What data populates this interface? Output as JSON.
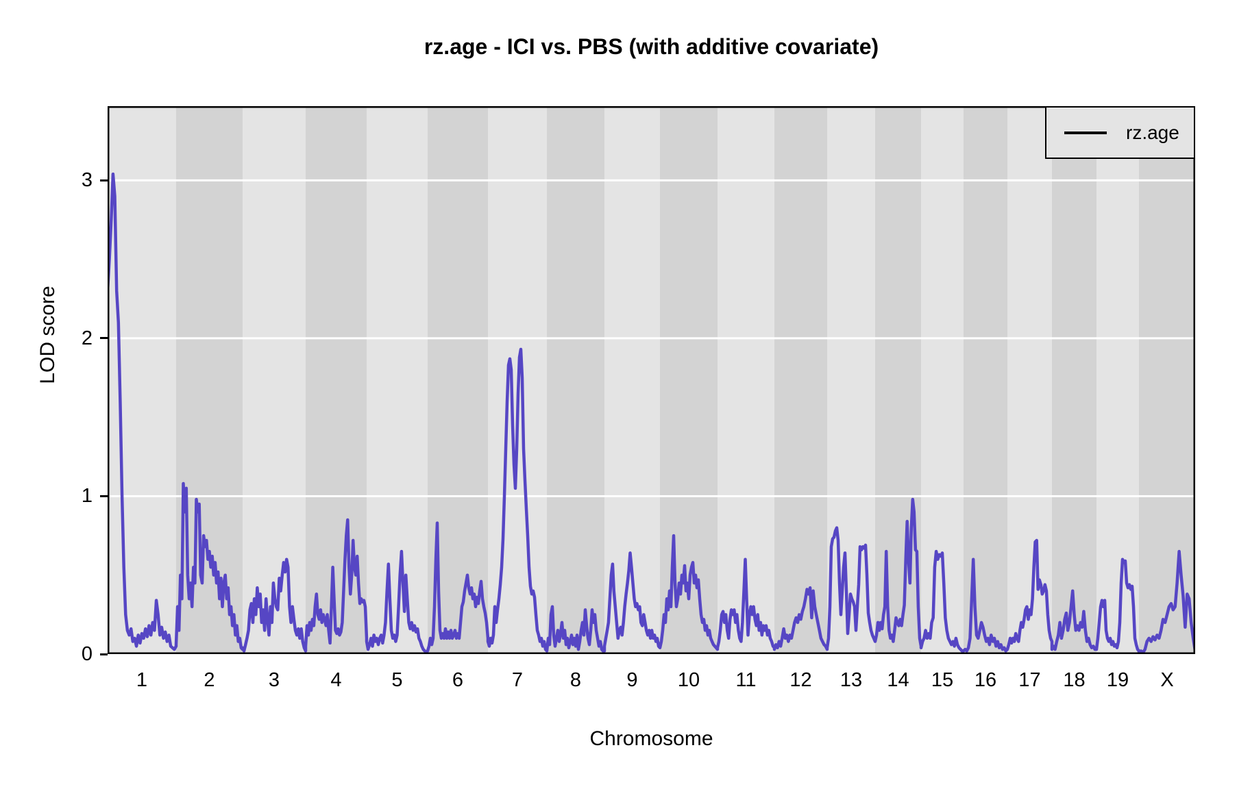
{
  "title": "rz.age - ICI vs. PBS (with additive covariate)",
  "y_axis": {
    "label": "LOD score"
  },
  "x_axis": {
    "label": "Chromosome"
  },
  "legend": {
    "series_label": "rz.age",
    "position": "top-right"
  },
  "colors": {
    "line": "#5646C4",
    "band_light": "#e4e4e4",
    "band_dark": "#d3d3d3",
    "gridline": "#ffffff",
    "border": "#000000",
    "background": "#ffffff",
    "legend_fill": "#e4e4e4"
  },
  "chart_data": {
    "type": "line",
    "title": "rz.age - ICI vs. PBS (with additive covariate)",
    "xlabel": "Chromosome",
    "ylabel": "LOD score",
    "ylim": [
      0,
      3.47
    ],
    "yticks": [
      0,
      1,
      2,
      3
    ],
    "grid": "horizontal-white-on-gray-bands",
    "legend_position": "top-right",
    "series_name": "rz.age",
    "chromosomes": [
      {
        "chr": "1",
        "rel_width": 100,
        "lod": [
          2.3,
          2.5,
          2.75,
          3.04,
          2.9,
          2.3,
          2.1,
          1.6,
          1.0,
          0.55,
          0.25,
          0.15,
          0.12,
          0.16,
          0.08,
          0.1,
          0.05,
          0.12,
          0.07,
          0.13,
          0.1,
          0.16,
          0.11,
          0.18,
          0.12,
          0.2,
          0.15,
          0.34,
          0.25,
          0.12,
          0.17,
          0.1,
          0.14,
          0.08,
          0.12,
          0.05,
          0.04,
          0.03,
          0.05
        ]
      },
      {
        "chr": "2",
        "rel_width": 97,
        "lod": [
          0.06,
          0.3,
          0.15,
          0.5,
          0.35,
          1.08,
          0.9,
          1.05,
          0.5,
          0.35,
          0.45,
          0.3,
          0.55,
          0.45,
          0.98,
          0.9,
          0.95,
          0.5,
          0.45,
          0.75,
          0.68,
          0.72,
          0.6,
          0.65,
          0.55,
          0.62,
          0.5,
          0.58,
          0.45,
          0.52,
          0.35,
          0.48,
          0.3,
          0.45,
          0.5,
          0.35,
          0.42,
          0.25,
          0.3,
          0.18,
          0.25,
          0.12,
          0.18,
          0.08,
          0.1,
          0.04,
          0.03
        ]
      },
      {
        "chr": "3",
        "rel_width": 92,
        "lod": [
          0.04,
          0.02,
          0.06,
          0.1,
          0.15,
          0.28,
          0.32,
          0.2,
          0.35,
          0.25,
          0.42,
          0.3,
          0.38,
          0.2,
          0.28,
          0.15,
          0.35,
          0.22,
          0.12,
          0.3,
          0.2,
          0.45,
          0.35,
          0.3,
          0.28,
          0.48,
          0.4,
          0.5,
          0.58,
          0.52,
          0.6,
          0.55,
          0.3,
          0.2,
          0.3,
          0.22,
          0.15,
          0.12,
          0.16,
          0.1,
          0.16,
          0.08,
          0.04,
          0.02
        ]
      },
      {
        "chr": "4",
        "rel_width": 89,
        "lod": [
          0.05,
          0.18,
          0.12,
          0.2,
          0.15,
          0.22,
          0.18,
          0.3,
          0.38,
          0.25,
          0.22,
          0.28,
          0.2,
          0.25,
          0.22,
          0.18,
          0.25,
          0.15,
          0.07,
          0.3,
          0.55,
          0.35,
          0.15,
          0.13,
          0.16,
          0.12,
          0.14,
          0.2,
          0.4,
          0.6,
          0.75,
          0.85,
          0.55,
          0.38,
          0.5,
          0.72,
          0.55,
          0.5,
          0.62,
          0.45,
          0.32,
          0.35,
          0.33,
          0.34,
          0.3,
          0.1
        ]
      },
      {
        "chr": "5",
        "rel_width": 89,
        "lod": [
          0.08,
          0.03,
          0.06,
          0.1,
          0.05,
          0.12,
          0.08,
          0.1,
          0.06,
          0.1,
          0.12,
          0.07,
          0.12,
          0.2,
          0.4,
          0.57,
          0.35,
          0.15,
          0.1,
          0.12,
          0.08,
          0.12,
          0.3,
          0.5,
          0.65,
          0.45,
          0.27,
          0.5,
          0.35,
          0.2,
          0.16,
          0.2,
          0.15,
          0.18,
          0.14,
          0.16,
          0.1,
          0.08,
          0.05,
          0.03,
          0.02,
          0.01,
          0.02
        ]
      },
      {
        "chr": "6",
        "rel_width": 88,
        "lod": [
          0.02,
          0.05,
          0.1,
          0.06,
          0.1,
          0.3,
          0.6,
          0.83,
          0.4,
          0.15,
          0.1,
          0.13,
          0.1,
          0.16,
          0.1,
          0.14,
          0.1,
          0.15,
          0.1,
          0.12,
          0.15,
          0.1,
          0.13,
          0.1,
          0.2,
          0.3,
          0.33,
          0.4,
          0.45,
          0.5,
          0.42,
          0.38,
          0.42,
          0.35,
          0.38,
          0.3,
          0.36,
          0.32,
          0.4,
          0.46,
          0.35,
          0.3,
          0.26,
          0.2,
          0.1
        ]
      },
      {
        "chr": "7",
        "rel_width": 86,
        "lod": [
          0.08,
          0.05,
          0.1,
          0.07,
          0.12,
          0.3,
          0.2,
          0.28,
          0.35,
          0.44,
          0.55,
          0.73,
          1.0,
          1.3,
          1.6,
          1.83,
          1.87,
          1.8,
          1.45,
          1.2,
          1.05,
          1.3,
          1.65,
          1.88,
          1.93,
          1.75,
          1.3,
          1.1,
          0.92,
          0.75,
          0.55,
          0.43,
          0.38,
          0.4,
          0.36,
          0.25,
          0.15,
          0.12,
          0.08,
          0.1,
          0.05,
          0.08,
          0.03,
          0.02
        ]
      },
      {
        "chr": "8",
        "rel_width": 84,
        "lod": [
          0.02,
          0.1,
          0.06,
          0.25,
          0.3,
          0.12,
          0.05,
          0.1,
          0.15,
          0.08,
          0.13,
          0.2,
          0.1,
          0.15,
          0.06,
          0.1,
          0.04,
          0.08,
          0.12,
          0.06,
          0.1,
          0.05,
          0.12,
          0.03,
          0.08,
          0.15,
          0.2,
          0.12,
          0.28,
          0.18,
          0.1,
          0.06,
          0.15,
          0.28,
          0.2,
          0.25,
          0.15,
          0.1,
          0.05,
          0.08,
          0.03,
          0.02,
          0.02
        ]
      },
      {
        "chr": "9",
        "rel_width": 81,
        "lod": [
          0.05,
          0.1,
          0.15,
          0.2,
          0.35,
          0.5,
          0.57,
          0.4,
          0.3,
          0.2,
          0.1,
          0.15,
          0.17,
          0.12,
          0.2,
          0.3,
          0.38,
          0.45,
          0.53,
          0.64,
          0.55,
          0.45,
          0.35,
          0.3,
          0.32,
          0.28,
          0.3,
          0.2,
          0.18,
          0.25,
          0.2,
          0.15,
          0.12,
          0.15,
          0.1,
          0.15,
          0.1,
          0.12,
          0.08,
          0.1,
          0.05,
          0.04
        ]
      },
      {
        "chr": "10",
        "rel_width": 84,
        "lod": [
          0.04,
          0.08,
          0.15,
          0.25,
          0.2,
          0.35,
          0.28,
          0.4,
          0.3,
          0.55,
          0.75,
          0.45,
          0.3,
          0.35,
          0.45,
          0.38,
          0.5,
          0.45,
          0.56,
          0.4,
          0.45,
          0.35,
          0.5,
          0.55,
          0.58,
          0.45,
          0.5,
          0.42,
          0.47,
          0.35,
          0.25,
          0.2,
          0.22,
          0.15,
          0.18,
          0.12,
          0.15,
          0.1,
          0.08,
          0.06,
          0.05,
          0.04,
          0.03
        ]
      },
      {
        "chr": "11",
        "rel_width": 83,
        "lod": [
          0.04,
          0.08,
          0.15,
          0.25,
          0.27,
          0.2,
          0.25,
          0.15,
          0.1,
          0.22,
          0.28,
          0.25,
          0.28,
          0.2,
          0.25,
          0.15,
          0.1,
          0.08,
          0.2,
          0.4,
          0.6,
          0.35,
          0.12,
          0.25,
          0.3,
          0.25,
          0.3,
          0.22,
          0.18,
          0.25,
          0.15,
          0.2,
          0.12,
          0.18,
          0.15,
          0.18,
          0.12,
          0.15,
          0.1,
          0.08,
          0.05,
          0.04
        ]
      },
      {
        "chr": "12",
        "rel_width": 77,
        "lod": [
          0.03,
          0.06,
          0.04,
          0.08,
          0.05,
          0.1,
          0.16,
          0.1,
          0.12,
          0.08,
          0.12,
          0.1,
          0.15,
          0.2,
          0.23,
          0.2,
          0.25,
          0.22,
          0.27,
          0.3,
          0.35,
          0.41,
          0.38,
          0.42,
          0.23,
          0.4,
          0.3,
          0.25,
          0.2,
          0.15,
          0.1,
          0.08,
          0.06,
          0.05,
          0.03
        ]
      },
      {
        "chr": "13",
        "rel_width": 70,
        "lod": [
          0.04,
          0.1,
          0.3,
          0.68,
          0.73,
          0.74,
          0.78,
          0.8,
          0.72,
          0.45,
          0.25,
          0.4,
          0.55,
          0.64,
          0.4,
          0.13,
          0.25,
          0.38,
          0.35,
          0.33,
          0.3,
          0.15,
          0.3,
          0.44,
          0.68,
          0.66,
          0.68,
          0.67,
          0.69,
          0.5,
          0.26,
          0.2,
          0.15,
          0.12,
          0.1,
          0.08
        ]
      },
      {
        "chr": "14",
        "rel_width": 67,
        "lod": [
          0.08,
          0.12,
          0.2,
          0.15,
          0.2,
          0.16,
          0.25,
          0.3,
          0.65,
          0.3,
          0.15,
          0.1,
          0.12,
          0.08,
          0.15,
          0.23,
          0.2,
          0.18,
          0.22,
          0.18,
          0.25,
          0.31,
          0.6,
          0.84,
          0.6,
          0.45,
          0.8,
          0.98,
          0.9,
          0.66,
          0.65,
          0.3,
          0.1,
          0.05
        ]
      },
      {
        "chr": "15",
        "rel_width": 62,
        "lod": [
          0.04,
          0.08,
          0.1,
          0.15,
          0.1,
          0.13,
          0.1,
          0.2,
          0.23,
          0.55,
          0.65,
          0.6,
          0.63,
          0.62,
          0.64,
          0.45,
          0.23,
          0.15,
          0.1,
          0.08,
          0.06,
          0.08,
          0.05,
          0.1,
          0.06,
          0.04,
          0.03,
          0.02,
          0.02
        ]
      },
      {
        "chr": "16",
        "rel_width": 64,
        "lod": [
          0.02,
          0.03,
          0.02,
          0.04,
          0.1,
          0.35,
          0.6,
          0.3,
          0.12,
          0.1,
          0.15,
          0.2,
          0.17,
          0.12,
          0.08,
          0.1,
          0.06,
          0.12,
          0.08,
          0.1,
          0.05,
          0.08,
          0.04,
          0.06,
          0.03,
          0.04,
          0.02,
          0.03
        ]
      },
      {
        "chr": "17",
        "rel_width": 65,
        "lod": [
          0.03,
          0.06,
          0.1,
          0.07,
          0.1,
          0.08,
          0.13,
          0.1,
          0.08,
          0.15,
          0.2,
          0.17,
          0.22,
          0.28,
          0.3,
          0.22,
          0.28,
          0.25,
          0.35,
          0.55,
          0.71,
          0.72,
          0.41,
          0.47,
          0.44,
          0.38,
          0.4,
          0.44,
          0.4,
          0.25,
          0.15,
          0.1,
          0.08
        ]
      },
      {
        "chr": "18",
        "rel_width": 65,
        "lod": [
          0.03,
          0.05,
          0.03,
          0.08,
          0.12,
          0.2,
          0.1,
          0.15,
          0.22,
          0.26,
          0.15,
          0.2,
          0.3,
          0.4,
          0.25,
          0.15,
          0.18,
          0.15,
          0.2,
          0.17,
          0.27,
          0.15,
          0.08,
          0.1,
          0.06,
          0.04,
          0.05,
          0.03,
          0.03
        ]
      },
      {
        "chr": "19",
        "rel_width": 62,
        "lod": [
          0.03,
          0.1,
          0.2,
          0.3,
          0.34,
          0.3,
          0.34,
          0.15,
          0.1,
          0.08,
          0.1,
          0.06,
          0.08,
          0.05,
          0.06,
          0.04,
          0.08,
          0.2,
          0.45,
          0.6,
          0.58,
          0.59,
          0.45,
          0.42,
          0.44,
          0.41,
          0.43,
          0.3,
          0.1,
          0.06,
          0.03,
          0.02
        ]
      },
      {
        "chr": "X",
        "rel_width": 82,
        "lod": [
          0.01,
          0.02,
          0.01,
          0.03,
          0.08,
          0.1,
          0.08,
          0.11,
          0.09,
          0.12,
          0.1,
          0.15,
          0.22,
          0.2,
          0.25,
          0.3,
          0.32,
          0.28,
          0.3,
          0.45,
          0.65,
          0.5,
          0.37,
          0.17,
          0.38,
          0.35,
          0.2,
          0.1,
          0.02
        ]
      }
    ]
  }
}
